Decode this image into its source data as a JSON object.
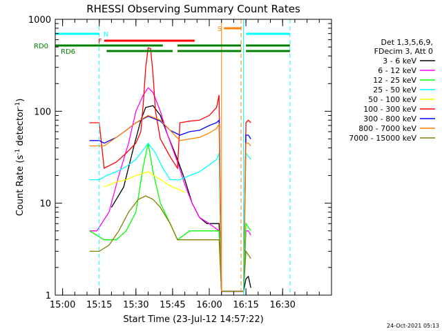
{
  "chart_data": {
    "type": "line",
    "title": "RHESSI Observing Summary Count Rates",
    "xlabel": "Start Time (23-Jul-12 14:57:22)",
    "ylabel": "Count Rate (s⁻¹ detector⁻¹)",
    "ylabel_parts": {
      "main": "Count Rate (s",
      "sup1": "-1",
      "mid": " detector",
      "sup2": "-1",
      "end": ")"
    },
    "y_scale": "log",
    "ylim": [
      1,
      1000
    ],
    "y_ticks": [
      "1",
      "10",
      "100",
      "1000"
    ],
    "xlim_minutes": [
      14.95,
      16.8333
    ],
    "xlim": [
      "14:57",
      "16:50"
    ],
    "x_ticks": [
      "15:00",
      "15:15",
      "15:30",
      "15:45",
      "16:00",
      "16:15",
      "16:30"
    ],
    "footer_date": "24-Oct-2021 05:13",
    "legend_header": [
      "Det 1,3,5,6,9,",
      "FDecim 3, Att 0"
    ],
    "series": [
      {
        "name": "3 - 6 keV",
        "color": "#000000",
        "points": [
          [
            "15:20",
            9
          ],
          [
            "15:25",
            15
          ],
          [
            "15:29",
            40
          ],
          [
            "15:32",
            80
          ],
          [
            "15:34",
            110
          ],
          [
            "15:37",
            115
          ],
          [
            "15:40",
            90
          ],
          [
            "15:43",
            55
          ],
          [
            "15:47",
            30
          ],
          [
            "15:50",
            18
          ],
          [
            "15:53",
            10
          ],
          [
            "15:56",
            7
          ],
          [
            "15:59",
            6
          ],
          [
            "16:04",
            6
          ],
          [
            "16:05",
            1.1
          ],
          [
            "16:14",
            1.1
          ],
          [
            "16:15",
            1.5
          ],
          [
            "16:16",
            1.6
          ],
          [
            "16:17",
            1.2
          ]
        ]
      },
      {
        "name": "6 - 12 keV",
        "color": "#ff00ff",
        "points": [
          [
            "15:11",
            5
          ],
          [
            "15:13",
            5
          ],
          [
            "15:14",
            5
          ],
          [
            "15:19",
            8
          ],
          [
            "15:23",
            20
          ],
          [
            "15:27",
            45
          ],
          [
            "15:30",
            100
          ],
          [
            "15:33",
            150
          ],
          [
            "15:35",
            180
          ],
          [
            "15:37",
            160
          ],
          [
            "15:40",
            100
          ],
          [
            "15:43",
            55
          ],
          [
            "15:47",
            28
          ],
          [
            "15:50",
            16
          ],
          [
            "15:53",
            10
          ],
          [
            "15:56",
            7
          ],
          [
            "16:00",
            6
          ],
          [
            "16:04",
            5
          ],
          [
            "16:05",
            1.1
          ],
          [
            "16:14",
            1.1
          ],
          [
            "16:15",
            5
          ],
          [
            "16:16",
            5
          ],
          [
            "16:17",
            4.5
          ]
        ]
      },
      {
        "name": "12 - 25 keV",
        "color": "#00ff00",
        "points": [
          [
            "15:11",
            5
          ],
          [
            "15:17",
            4
          ],
          [
            "15:22",
            4
          ],
          [
            "15:26",
            5
          ],
          [
            "15:30",
            8
          ],
          [
            "15:33",
            25
          ],
          [
            "15:35",
            45
          ],
          [
            "15:37",
            22
          ],
          [
            "15:40",
            10
          ],
          [
            "15:44",
            6
          ],
          [
            "15:47",
            4
          ],
          [
            "15:52",
            5
          ],
          [
            "15:58",
            5
          ],
          [
            "16:04",
            5
          ],
          [
            "16:05",
            1.1
          ],
          [
            "16:14",
            1.1
          ],
          [
            "16:15",
            6
          ],
          [
            "16:17",
            5
          ]
        ]
      },
      {
        "name": "25 - 50 keV",
        "color": "#00ffff",
        "points": [
          [
            "15:11",
            18
          ],
          [
            "15:13",
            18
          ],
          [
            "15:15",
            18
          ],
          [
            "15:18",
            20
          ],
          [
            "15:22",
            22
          ],
          [
            "15:26",
            25
          ],
          [
            "15:30",
            30
          ],
          [
            "15:33",
            38
          ],
          [
            "15:35",
            45
          ],
          [
            "15:38",
            35
          ],
          [
            "15:41",
            24
          ],
          [
            "15:44",
            18
          ],
          [
            "15:48",
            18
          ],
          [
            "15:52",
            20
          ],
          [
            "15:56",
            22
          ],
          [
            "16:00",
            26
          ],
          [
            "16:03",
            30
          ],
          [
            "16:04",
            35
          ],
          [
            "16:05",
            1.1
          ],
          [
            "16:14",
            1.1
          ],
          [
            "16:15",
            35
          ],
          [
            "16:17",
            30
          ]
        ]
      },
      {
        "name": "50 - 100 keV",
        "color": "#ffff00",
        "points": [
          [
            "15:17",
            15
          ],
          [
            "15:22",
            17
          ],
          [
            "15:26",
            18
          ],
          [
            "15:30",
            20
          ],
          [
            "15:35",
            22
          ],
          [
            "15:40",
            18
          ],
          [
            "15:45",
            15
          ],
          [
            "15:48",
            14
          ],
          [
            "15:50",
            13
          ]
        ]
      },
      {
        "name": "100 - 300 keV",
        "color": "#ff0000",
        "points": [
          [
            "15:11",
            75
          ],
          [
            "15:14",
            75
          ],
          [
            "15:15",
            75
          ],
          [
            "15:17",
            24
          ],
          [
            "15:22",
            28
          ],
          [
            "15:26",
            35
          ],
          [
            "15:30",
            45
          ],
          [
            "15:32",
            60
          ],
          [
            "15:33",
            120
          ],
          [
            "15:34",
            300
          ],
          [
            "15:35",
            490
          ],
          [
            "15:36",
            480
          ],
          [
            "15:37",
            250
          ],
          [
            "15:38",
            100
          ],
          [
            "15:40",
            50
          ],
          [
            "15:44",
            32
          ],
          [
            "15:47",
            24
          ],
          [
            "15:48",
            75
          ],
          [
            "15:52",
            78
          ],
          [
            "15:56",
            80
          ],
          [
            "16:00",
            90
          ],
          [
            "16:03",
            110
          ],
          [
            "16:04",
            150
          ],
          [
            "16:05",
            1.1
          ],
          [
            "16:14",
            1.1
          ],
          [
            "16:15",
            75
          ],
          [
            "16:16",
            80
          ],
          [
            "16:17",
            75
          ]
        ]
      },
      {
        "name": "300 - 800 keV",
        "color": "#0000ff",
        "points": [
          [
            "15:11",
            48
          ],
          [
            "15:15",
            48
          ],
          [
            "15:17",
            45
          ],
          [
            "15:22",
            52
          ],
          [
            "15:26",
            62
          ],
          [
            "15:30",
            75
          ],
          [
            "15:35",
            88
          ],
          [
            "15:40",
            78
          ],
          [
            "15:44",
            62
          ],
          [
            "15:48",
            55
          ],
          [
            "15:52",
            60
          ],
          [
            "15:56",
            62
          ],
          [
            "16:00",
            70
          ],
          [
            "16:03",
            75
          ],
          [
            "16:04",
            80
          ],
          [
            "16:05",
            1.1
          ],
          [
            "16:14",
            1.1
          ],
          [
            "16:15",
            55
          ],
          [
            "16:16",
            55
          ],
          [
            "16:17",
            50
          ]
        ]
      },
      {
        "name": "800 - 7000 keV",
        "color": "#ff8000",
        "points": [
          [
            "15:11",
            42
          ],
          [
            "15:15",
            42
          ],
          [
            "15:17",
            42
          ],
          [
            "15:22",
            52
          ],
          [
            "15:26",
            62
          ],
          [
            "15:30",
            75
          ],
          [
            "15:35",
            90
          ],
          [
            "15:40",
            80
          ],
          [
            "15:44",
            62
          ],
          [
            "15:48",
            48
          ],
          [
            "15:52",
            50
          ],
          [
            "15:56",
            52
          ],
          [
            "16:00",
            58
          ],
          [
            "16:03",
            65
          ],
          [
            "16:04",
            72
          ],
          [
            "16:05",
            1.1
          ],
          [
            "16:14",
            1.1
          ],
          [
            "16:15",
            45
          ],
          [
            "16:16",
            45
          ],
          [
            "16:17",
            42
          ]
        ]
      },
      {
        "name": "7000 - 15000 keV",
        "color": "#808000",
        "points": [
          [
            "15:11",
            3
          ],
          [
            "15:15",
            3
          ],
          [
            "15:19",
            3.5
          ],
          [
            "15:23",
            5
          ],
          [
            "15:27",
            8
          ],
          [
            "15:31",
            11
          ],
          [
            "15:34",
            12
          ],
          [
            "15:37",
            11
          ],
          [
            "15:40",
            9
          ],
          [
            "15:44",
            6
          ],
          [
            "15:47",
            4
          ],
          [
            "15:52",
            4
          ],
          [
            "15:58",
            4
          ],
          [
            "16:03",
            4
          ],
          [
            "16:04",
            4
          ],
          [
            "16:05",
            1.1
          ],
          [
            "16:14",
            1.1
          ],
          [
            "16:15",
            3
          ],
          [
            "16:17",
            2.5
          ]
        ]
      }
    ],
    "flags": [
      {
        "label": "N",
        "color": "#00ffff",
        "segments": [
          [
            "14:57",
            "15:15"
          ],
          [
            "16:15",
            "16:33"
          ]
        ]
      },
      {
        "label": "F",
        "color": "#ff0000",
        "segments": [
          [
            "15:17",
            "15:54"
          ]
        ]
      },
      {
        "label": "S",
        "color": "#ff8000",
        "segments": [
          [
            "16:06",
            "16:13"
          ]
        ]
      },
      {
        "label": "RD0",
        "color": "#008000",
        "segments": [
          [
            "14:57",
            "15:41"
          ],
          [
            "15:47",
            "16:13"
          ],
          [
            "16:15",
            "16:33"
          ]
        ]
      },
      {
        "label": "RD6",
        "color": "#008000",
        "segments": [
          [
            "15:18",
            "15:45"
          ],
          [
            "15:47",
            "16:13"
          ],
          [
            "16:15",
            "16:33"
          ]
        ]
      }
    ],
    "vertical_markers": [
      {
        "time": "15:15",
        "color": "#00ffff",
        "style": "dashed"
      },
      {
        "time": "16:05",
        "color": "#ff8000",
        "style": "solid"
      },
      {
        "time": "16:13",
        "color": "#ff8000",
        "style": "dashed"
      },
      {
        "time": "16:14",
        "color": "#00ffff",
        "style": "solid"
      },
      {
        "time": "16:33",
        "color": "#00ffff",
        "style": "dashed"
      }
    ]
  }
}
